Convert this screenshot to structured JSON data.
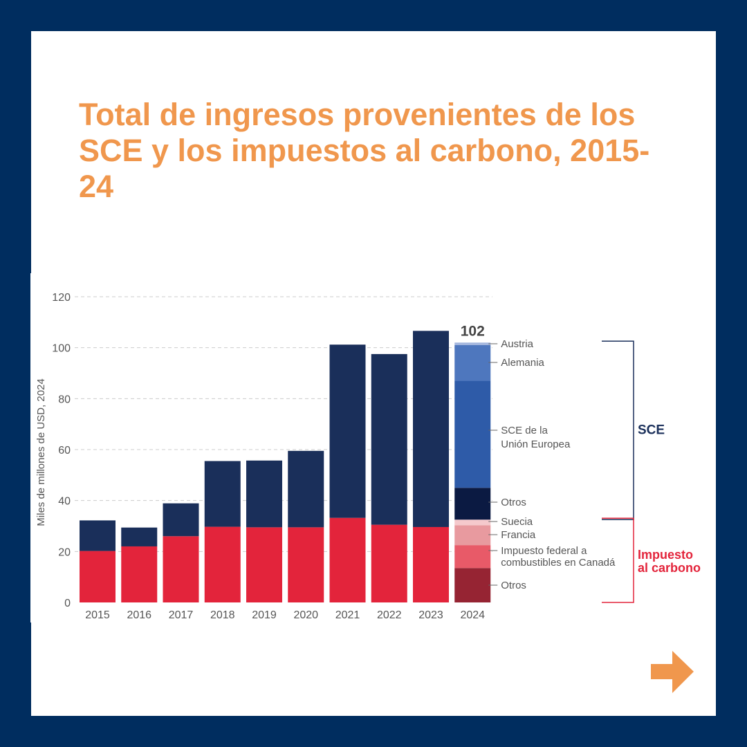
{
  "page": {
    "title": "Total de ingresos provenientes de los SCE y los impuestos al carbono, 2015-24"
  },
  "colors": {
    "background": "#002d5f",
    "title": "#f0974d",
    "sce_total": "#1a2f5a",
    "carbon_tax_total": "#e3243b",
    "sce_bracket": "#1a2f5a",
    "tax_bracket": "#e3243b",
    "gridline": "#cccccc",
    "text": "#555555",
    "arrow": "#f0974d"
  },
  "icons": {
    "next": "arrow-right-icon"
  },
  "chart_data": {
    "type": "bar",
    "stacked": true,
    "ylabel": "Miles de millones de USD, 2024",
    "ylim": [
      0,
      120
    ],
    "yticks": [
      0,
      20,
      40,
      60,
      80,
      100,
      120
    ],
    "grid": true,
    "categories": [
      "2015",
      "2016",
      "2017",
      "2018",
      "2019",
      "2020",
      "2021",
      "2022",
      "2023",
      "2024"
    ],
    "series": [
      {
        "key": "tax",
        "color": "#e3243b",
        "values": [
          20.2,
          22,
          26,
          29.7,
          29.5,
          29.5,
          33.2,
          30.5,
          29.6,
          null
        ]
      },
      {
        "key": "sce",
        "color": "#1a2f5a",
        "values": [
          12,
          7.4,
          12.9,
          25.8,
          26.2,
          30,
          68,
          67,
          77,
          null
        ]
      }
    ],
    "breakdown_2024": {
      "total_label": "102",
      "segments": [
        {
          "label": "Otros",
          "value": 13.5,
          "color": "#962433",
          "group": "tax"
        },
        {
          "label": "Impuesto federal a combustibles en Canadá",
          "value": 9,
          "color": "#e85a68",
          "group": "tax"
        },
        {
          "label": "Francia",
          "value": 7.8,
          "color": "#e89a9f",
          "group": "tax"
        },
        {
          "label": "Suecia",
          "value": 2.2,
          "color": "#f5c9cc",
          "group": "tax"
        },
        {
          "label": "Otros",
          "value": 12.5,
          "color": "#0b1a42",
          "group": "sce"
        },
        {
          "label": "SCE de la Unión Europea",
          "value": 42,
          "color": "#2e5ba8",
          "group": "sce"
        },
        {
          "label": "Alemania",
          "value": 14,
          "color": "#4e77be",
          "group": "sce"
        },
        {
          "label": "Austria",
          "value": 1,
          "color": "#a3b6de",
          "group": "sce"
        }
      ]
    },
    "groups": [
      {
        "key": "sce",
        "label": "SCE",
        "color": "#1a2f5a"
      },
      {
        "key": "tax",
        "label": "Impuesto al carbono",
        "color": "#e3243b"
      }
    ]
  }
}
